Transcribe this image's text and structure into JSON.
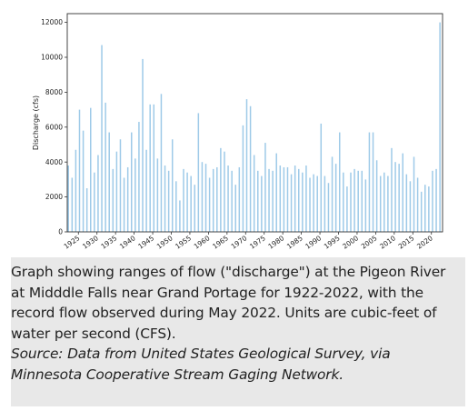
{
  "caption": {
    "text": "Graph showing ranges of flow (\"discharge\") at the Pigeon River at Midddle Falls near Grand Portage for 1922-2022, with the record flow observed during May 2022. Units are cubic-feet of water per second (CFS).",
    "source": "Source: Data from United States Geological Survey, via Minnesota Cooperative Stream Gaging Network."
  },
  "colors": {
    "series": "#9ecae8",
    "axes": "#333333",
    "caption_background": "#e8e8e8"
  },
  "chart_data": {
    "type": "bar",
    "title": "",
    "xlabel": "",
    "ylabel": "Discharge (cfs)",
    "x_tick_labels": [
      "1925",
      "1930",
      "1935",
      "1940",
      "1945",
      "1950",
      "1955",
      "1960",
      "1965",
      "1970",
      "1975",
      "1980",
      "1985",
      "1990",
      "1995",
      "2000",
      "2005",
      "2010",
      "2015",
      "2020"
    ],
    "x_ticks": [
      1925,
      1930,
      1935,
      1940,
      1945,
      1950,
      1955,
      1960,
      1965,
      1970,
      1975,
      1980,
      1985,
      1990,
      1995,
      2000,
      2005,
      2010,
      2015,
      2020
    ],
    "y_ticks": [
      0,
      2000,
      4000,
      6000,
      8000,
      10000,
      12000
    ],
    "y_tick_labels": [
      "0",
      "2000",
      "4000",
      "6000",
      "8000",
      "10000",
      "12000"
    ],
    "xlim": [
      1922,
      2023
    ],
    "ylim": [
      0,
      12500
    ],
    "grid": false,
    "legend": "none",
    "series": [
      {
        "x": [
          1922.3,
          1923.3,
          1924.3,
          1925.3,
          1926.3,
          1927.3,
          1928.3,
          1929.3,
          1930.3,
          1931.3,
          1932.3,
          1933.3,
          1934.3,
          1935.3,
          1936.3,
          1937.3,
          1938.3,
          1939.3,
          1940.3,
          1941.3,
          1942.3,
          1943.3,
          1944.3,
          1945.3,
          1946.3,
          1947.3,
          1948.3,
          1949.3,
          1950.3,
          1951.3,
          1952.3,
          1953.3,
          1954.3,
          1955.3,
          1956.3,
          1957.3,
          1958.3,
          1959.3,
          1960.3,
          1961.3,
          1962.3,
          1963.3,
          1964.3,
          1965.3,
          1966.3,
          1967.3,
          1968.3,
          1969.3,
          1970.3,
          1971.3,
          1972.3,
          1973.3,
          1974.3,
          1975.3,
          1976.3,
          1977.3,
          1978.3,
          1979.3,
          1980.3,
          1981.3,
          1982.3,
          1983.3,
          1984.3,
          1985.3,
          1986.3,
          1987.3,
          1988.3,
          1989.3,
          1990.3,
          1991.3,
          1992.3,
          1993.3,
          1994.3,
          1995.3,
          1996.3,
          1997.3,
          1998.3,
          1999.3,
          2000.3,
          2001.3,
          2002.3,
          2003.3,
          2004.3,
          2005.3,
          2006.3,
          2007.3,
          2008.3,
          2009.3,
          2010.3,
          2011.3,
          2012.3,
          2013.3,
          2014.3,
          2015.3,
          2016.3,
          2017.3,
          2018.3,
          2019.3,
          2020.3,
          2021.3,
          2022.3
        ],
        "values": [
          3800,
          3100,
          4700,
          7000,
          5800,
          2500,
          7100,
          3400,
          4400,
          10700,
          7400,
          5700,
          3600,
          4600,
          5300,
          3100,
          3700,
          5700,
          4200,
          6300,
          9900,
          4700,
          7300,
          7300,
          4200,
          7900,
          3800,
          3500,
          5300,
          2900,
          1800,
          3600,
          3400,
          3200,
          2700,
          6800,
          4000,
          3900,
          3100,
          3600,
          3700,
          4800,
          4600,
          3800,
          3500,
          2700,
          3700,
          6100,
          7600,
          7200,
          4400,
          3500,
          3200,
          5100,
          3600,
          3500,
          4500,
          3800,
          3700,
          3700,
          3300,
          3800,
          3600,
          3400,
          3800,
          3100,
          3300,
          3200,
          6200,
          3200,
          2800,
          4300,
          3900,
          5700,
          3400,
          2600,
          3400,
          3600,
          3500,
          3500,
          3000,
          5700,
          5700,
          4100,
          3200,
          3400,
          3200,
          4800,
          4000,
          3900,
          4500,
          3300,
          2900,
          4300,
          3100,
          2300,
          2700,
          2600,
          3500,
          3600,
          12000
        ]
      }
    ]
  }
}
